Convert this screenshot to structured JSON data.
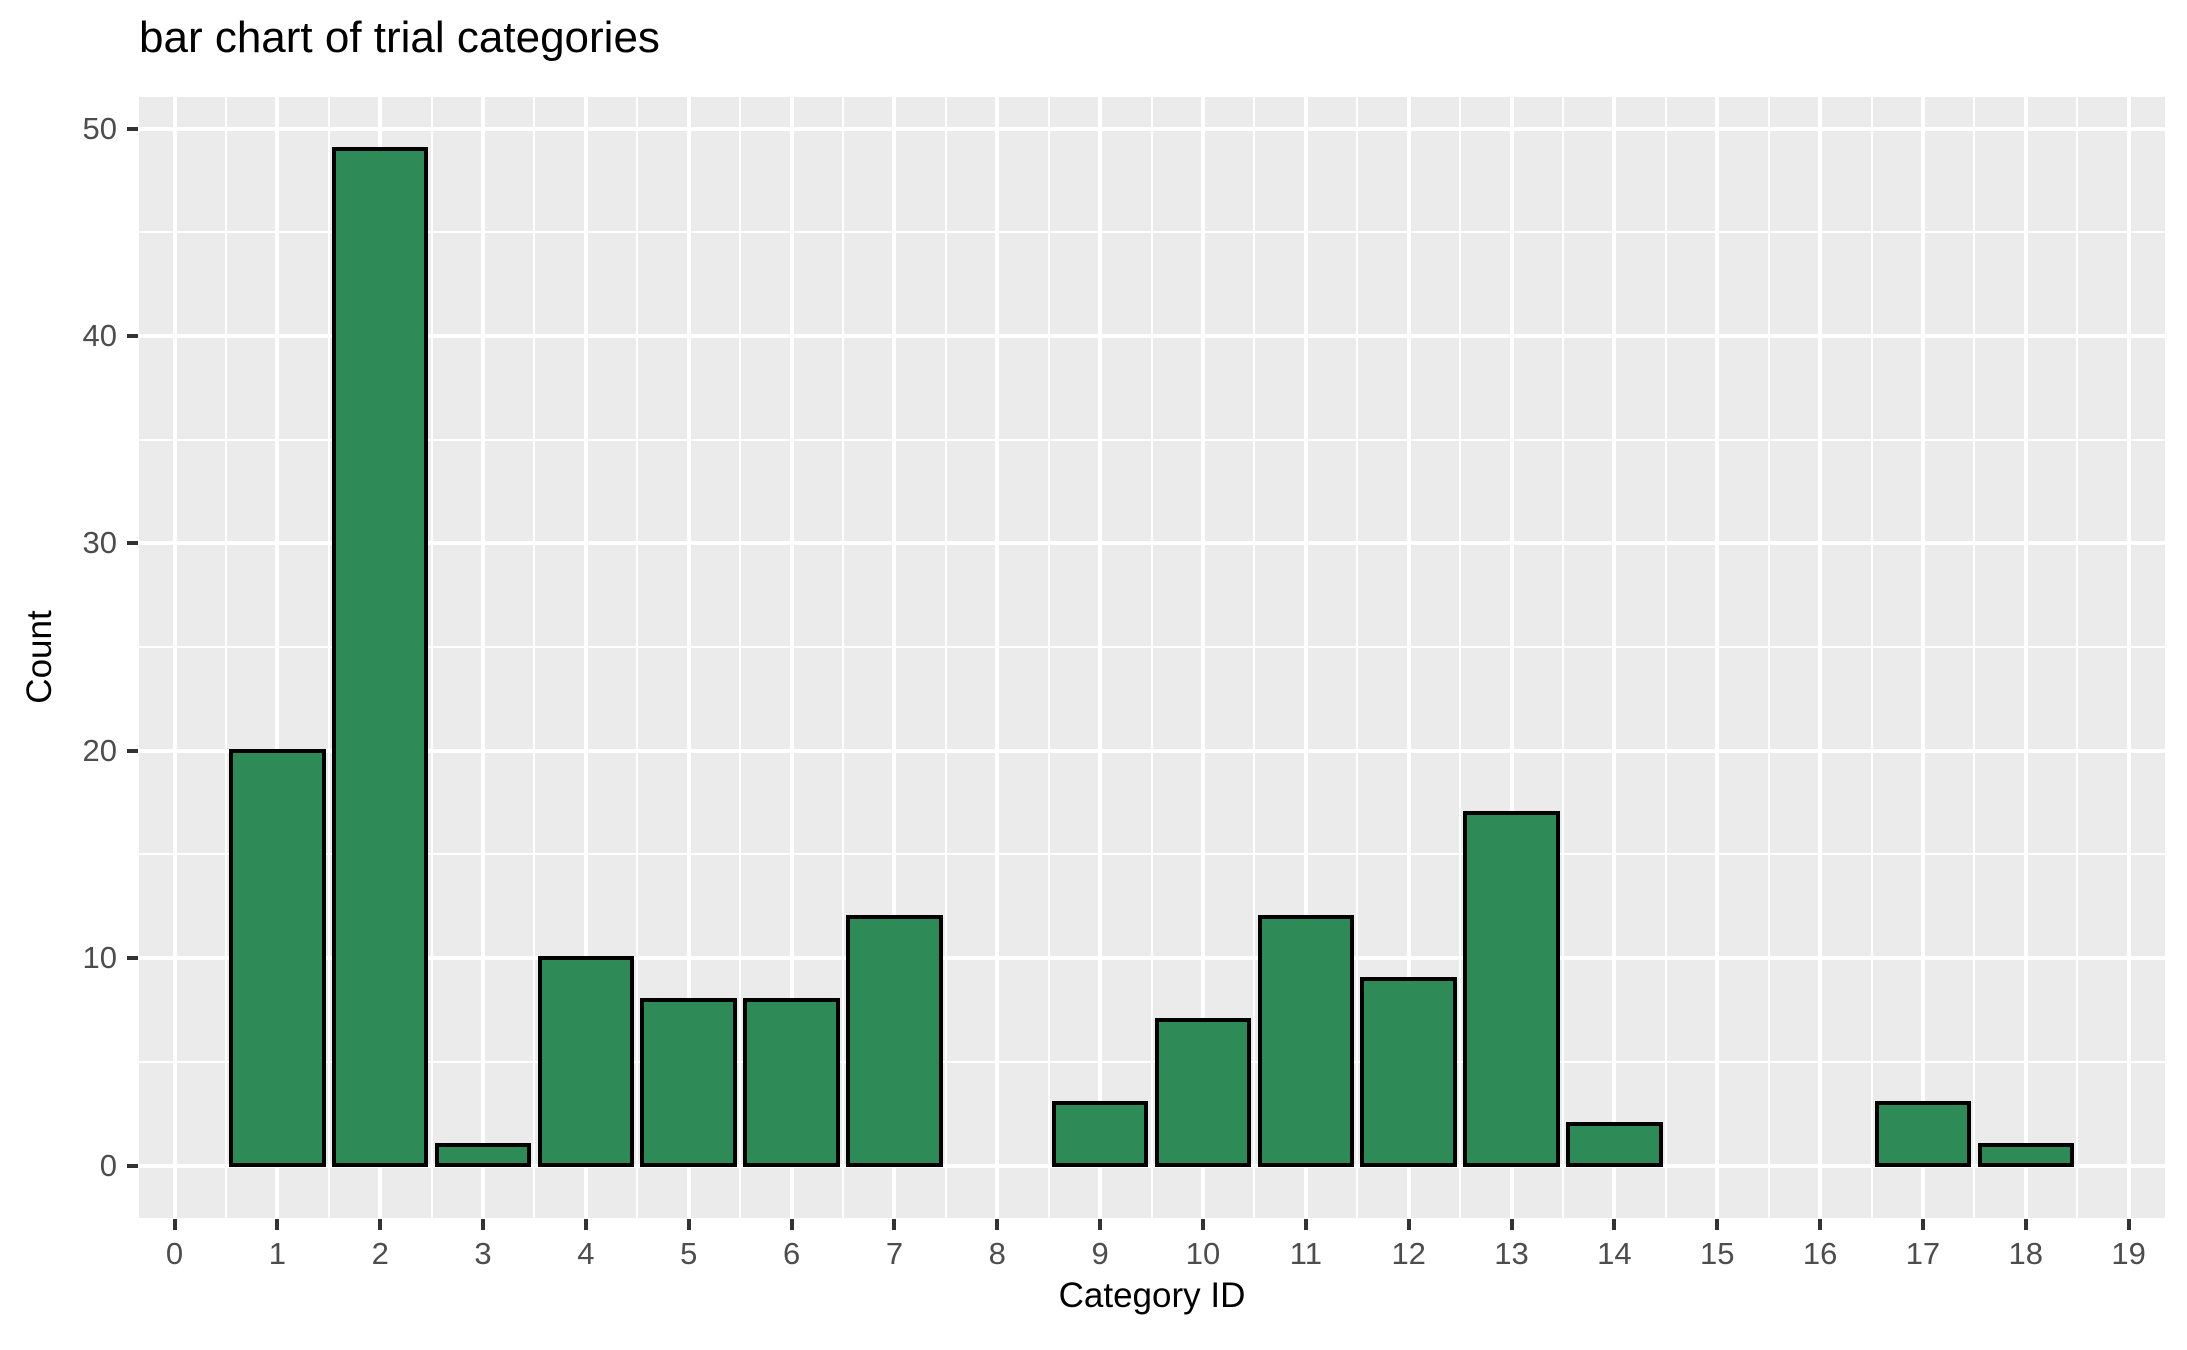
{
  "chart_data": {
    "type": "bar",
    "title": "bar chart of trial categories",
    "xlabel": "Category ID",
    "ylabel": "Count",
    "categories": [
      0,
      1,
      2,
      3,
      4,
      5,
      6,
      7,
      8,
      9,
      10,
      11,
      12,
      13,
      14,
      15,
      16,
      17,
      18,
      19
    ],
    "values": [
      0,
      20,
      49,
      1,
      10,
      8,
      8,
      12,
      0,
      3,
      7,
      12,
      9,
      17,
      2,
      0,
      0,
      3,
      1,
      0
    ],
    "x_tick_labels": [
      "0",
      "1",
      "2",
      "3",
      "4",
      "5",
      "6",
      "7",
      "8",
      "9",
      "10",
      "11",
      "12",
      "13",
      "14",
      "15",
      "16",
      "17",
      "18",
      "19"
    ],
    "y_ticks": [
      0,
      10,
      20,
      30,
      40,
      50
    ],
    "y_minor_ticks": [
      5,
      15,
      25,
      35,
      45
    ],
    "ylim": [
      0,
      50
    ],
    "bar_width_fraction": 0.9,
    "legend": "none",
    "grid": {
      "major": true,
      "minor": true,
      "style": "white lines on grey panel"
    },
    "colors": {
      "bar_fill": "#2E8B57",
      "bar_stroke": "#000000",
      "panel_bg": "#EBEBEB",
      "grid_major": "#FFFFFF",
      "grid_minor": "#FFFFFF",
      "tick_label": "#4D4D4D",
      "tick_mark": "#333333",
      "title_text": "#000000"
    }
  }
}
